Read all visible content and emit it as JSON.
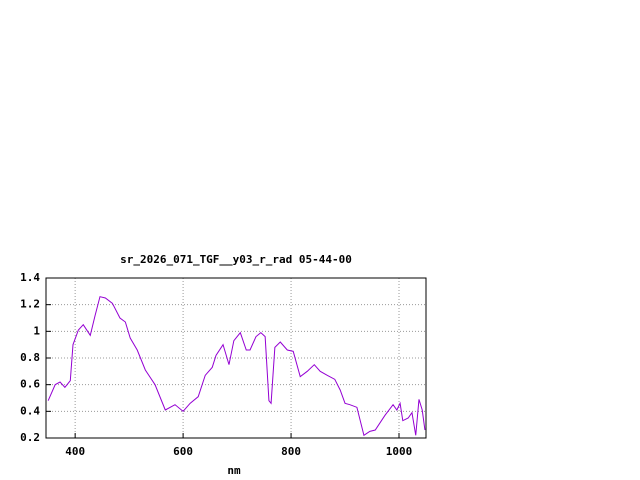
{
  "chart_data": {
    "type": "line",
    "title": "sr_2026_071_TGF__y03_r_rad 05-44-00",
    "x_label": "nm",
    "x": [
      350,
      363,
      372,
      381,
      391,
      396,
      406,
      415,
      428,
      437,
      446,
      456,
      469,
      483,
      493,
      502,
      515,
      530,
      548,
      567,
      585,
      600,
      613,
      628,
      641,
      654,
      661,
      674,
      685,
      694,
      706,
      717,
      724,
      735,
      744,
      752,
      759,
      763,
      770,
      780,
      793,
      804,
      817,
      830,
      843,
      854,
      867,
      881,
      891,
      900,
      909,
      922,
      935,
      946,
      956,
      974,
      989,
      996,
      1002,
      1007,
      1017,
      1024,
      1031,
      1037,
      1043,
      1048
    ],
    "series": [
      {
        "color": "#9400d3",
        "values": [
          0.48,
          0.6,
          0.62,
          0.58,
          0.63,
          0.9,
          1.01,
          1.05,
          0.97,
          1.12,
          1.26,
          1.25,
          1.21,
          1.1,
          1.07,
          0.95,
          0.86,
          0.71,
          0.6,
          0.41,
          0.45,
          0.4,
          0.46,
          0.51,
          0.67,
          0.73,
          0.82,
          0.9,
          0.75,
          0.93,
          0.99,
          0.86,
          0.86,
          0.96,
          0.99,
          0.96,
          0.48,
          0.46,
          0.88,
          0.92,
          0.86,
          0.85,
          0.66,
          0.7,
          0.75,
          0.7,
          0.67,
          0.64,
          0.56,
          0.46,
          0.45,
          0.43,
          0.22,
          0.25,
          0.26,
          0.37,
          0.45,
          0.41,
          0.46,
          0.33,
          0.35,
          0.39,
          0.22,
          0.49,
          0.41,
          0.26
        ]
      }
    ],
    "xlim": [
      346,
      1050
    ],
    "ylim": [
      0.2,
      1.4
    ],
    "xticks": [
      400,
      600,
      800,
      1000
    ],
    "yticks": [
      0.2,
      0.4,
      0.6,
      0.8,
      1,
      1.2,
      1.4
    ],
    "grid": true
  }
}
